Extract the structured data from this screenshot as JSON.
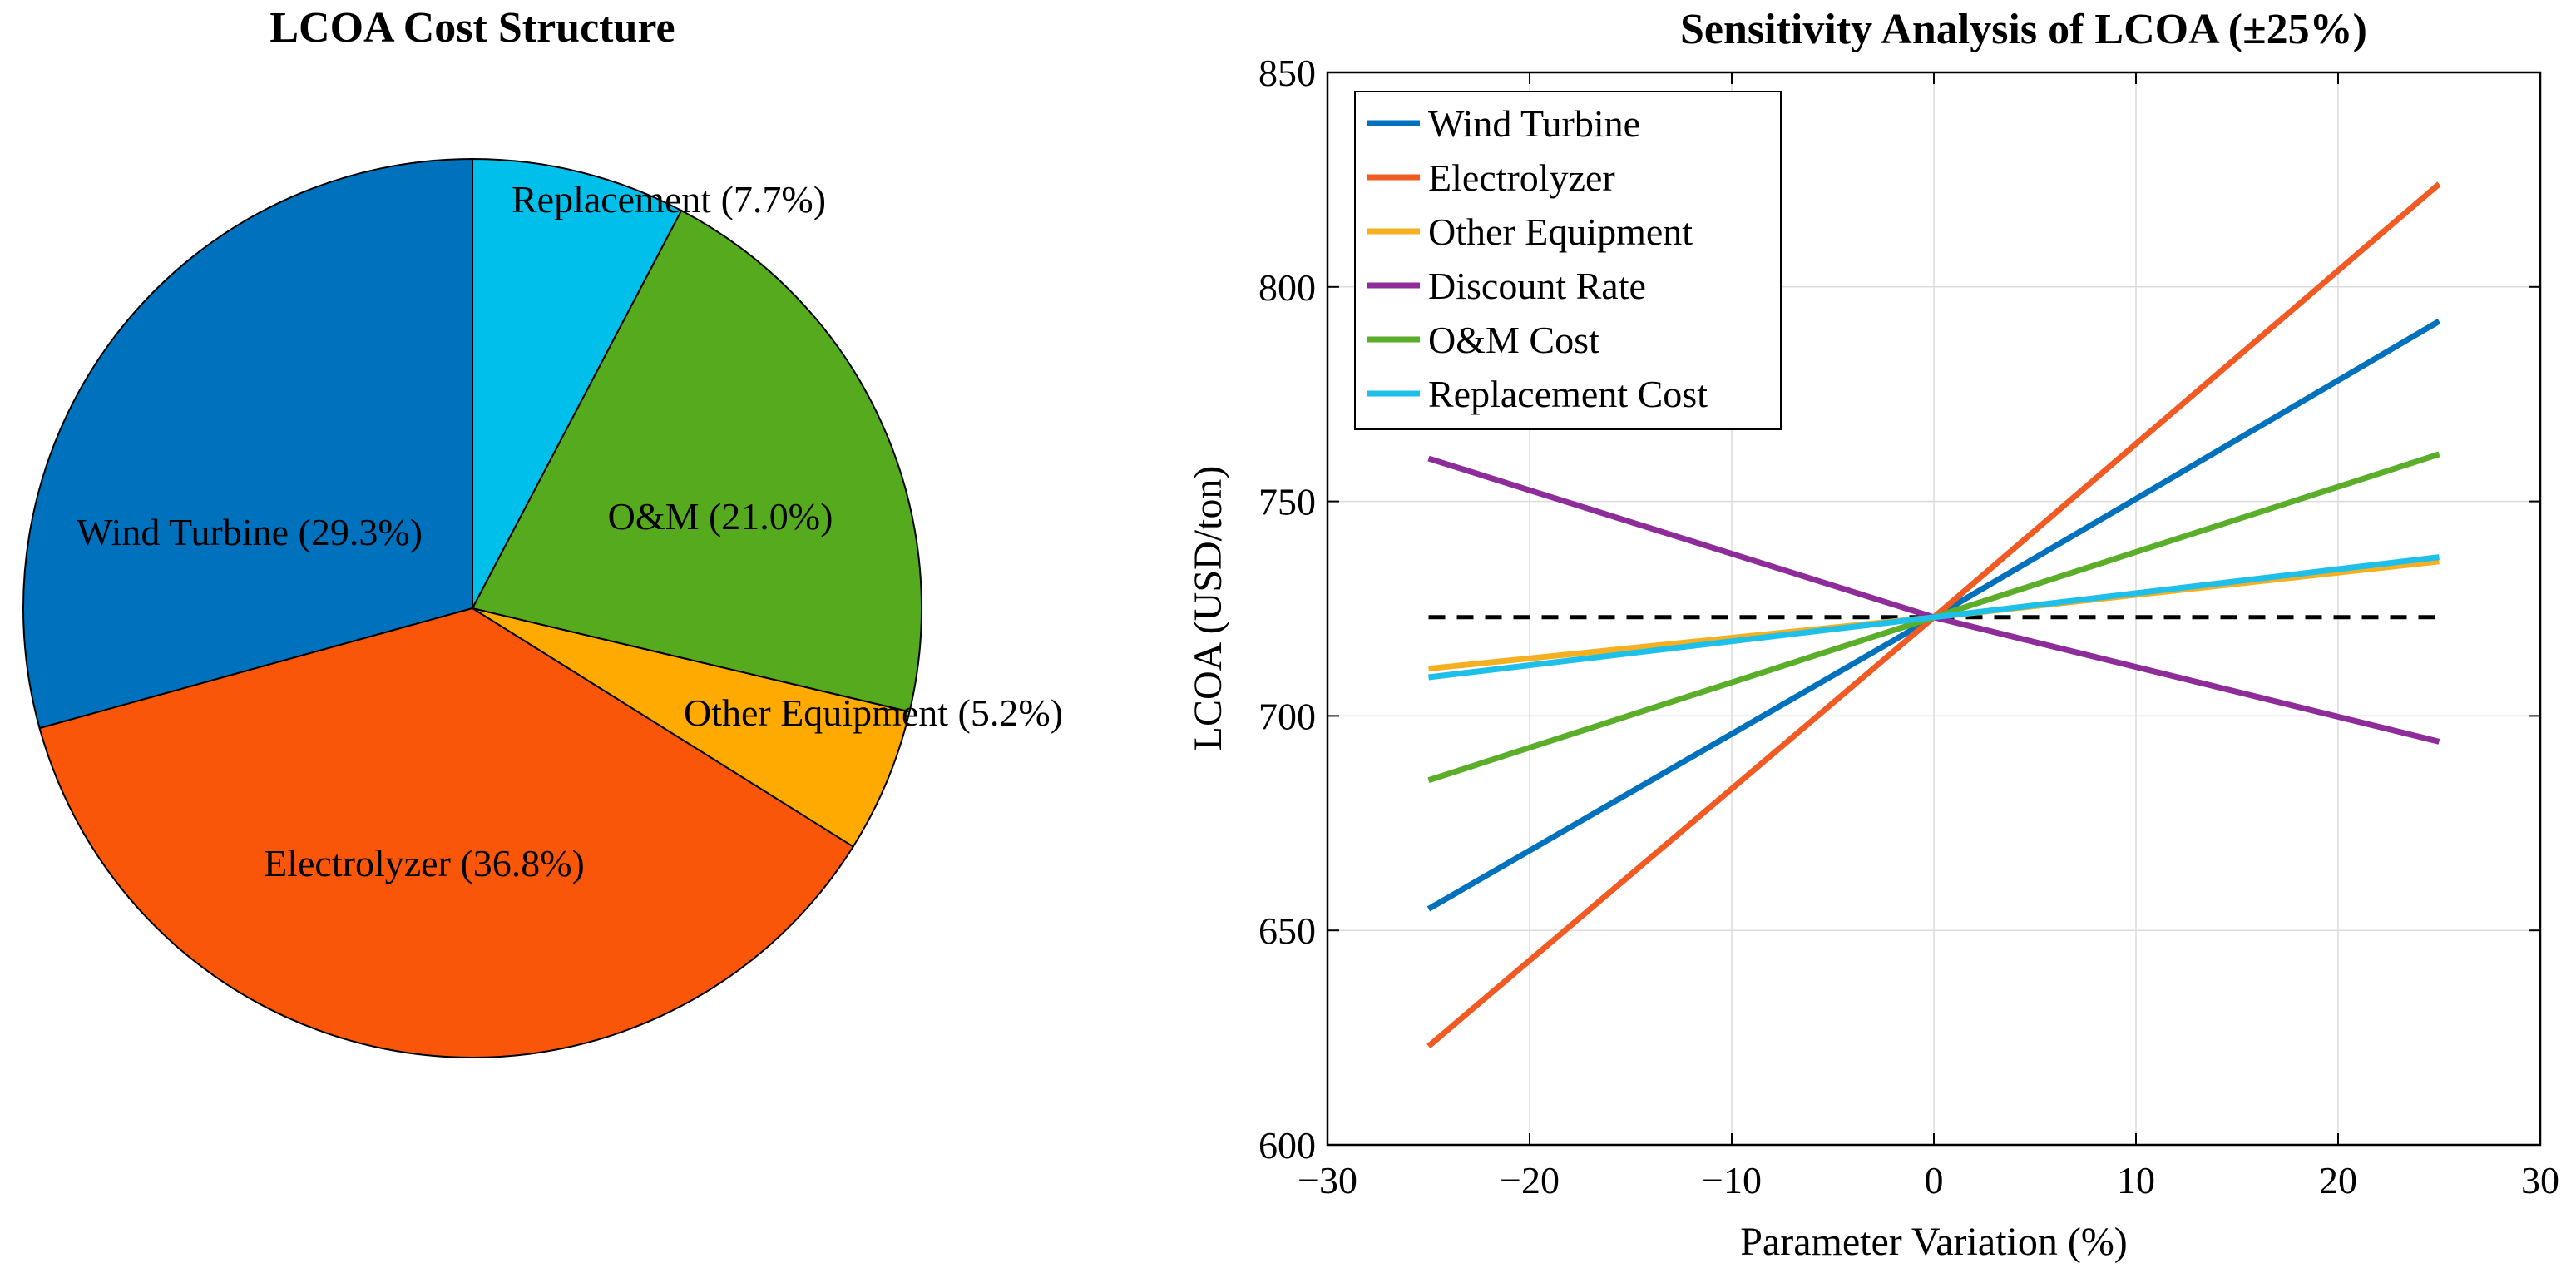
{
  "chart_data": [
    {
      "type": "pie",
      "title": "LCOA Cost Structure",
      "slices": [
        {
          "label": "Wind Turbine (29.3%)",
          "value": 29.3,
          "color": "#0072BD"
        },
        {
          "label": "Electrolyzer (36.8%)",
          "value": 36.8,
          "color": "#F9560A"
        },
        {
          "label": "Other Equipment (5.2%)",
          "value": 5.2,
          "color": "#FFAA00"
        },
        {
          "label": "O&M (21.0%)",
          "value": 21.0,
          "color": "#55AA1E"
        },
        {
          "label": "Replacement (7.7%)",
          "value": 7.7,
          "color": "#00BFEA"
        }
      ],
      "start_angle_deg": 90,
      "direction": "counterclockwise"
    },
    {
      "type": "line",
      "title": "Sensitivity Analysis of LCOA (±25%)",
      "xlabel": "Parameter Variation (%)",
      "ylabel": "LCOA (USD/ton)",
      "xlim": [
        -30,
        30
      ],
      "ylim": [
        600,
        850
      ],
      "xticks": [
        -30,
        -20,
        -10,
        0,
        10,
        20,
        30
      ],
      "yticks": [
        600,
        650,
        700,
        750,
        800,
        850
      ],
      "xtick_labels": [
        "−30",
        "−20",
        "−10",
        "0",
        "10",
        "20",
        "30"
      ],
      "ytick_labels": [
        "600",
        "650",
        "700",
        "750",
        "800",
        "850"
      ],
      "grid": true,
      "legend_position": "top-left",
      "baseline": {
        "y": 723,
        "x": [
          -25,
          25
        ],
        "style": "dashed",
        "color": "#000000"
      },
      "series": [
        {
          "name": "Wind Turbine",
          "color": "#0072BD",
          "x": [
            -25,
            0,
            25
          ],
          "y": [
            655,
            723,
            792
          ]
        },
        {
          "name": "Electrolyzer",
          "color": "#F15A22",
          "x": [
            -25,
            0,
            25
          ],
          "y": [
            623,
            723,
            824
          ]
        },
        {
          "name": "Other Equipment",
          "color": "#F5B021",
          "x": [
            -25,
            0,
            25
          ],
          "y": [
            711,
            723,
            736
          ]
        },
        {
          "name": "Discount Rate",
          "color": "#8E2C9A",
          "x": [
            -25,
            0,
            25
          ],
          "y": [
            760,
            723,
            694
          ]
        },
        {
          "name": "O&M Cost",
          "color": "#5BAE2A",
          "x": [
            -25,
            0,
            25
          ],
          "y": [
            685,
            723,
            761
          ]
        },
        {
          "name": "Replacement Cost",
          "color": "#1EC0EA",
          "x": [
            -25,
            0,
            25
          ],
          "y": [
            709,
            723,
            737
          ]
        }
      ]
    }
  ]
}
